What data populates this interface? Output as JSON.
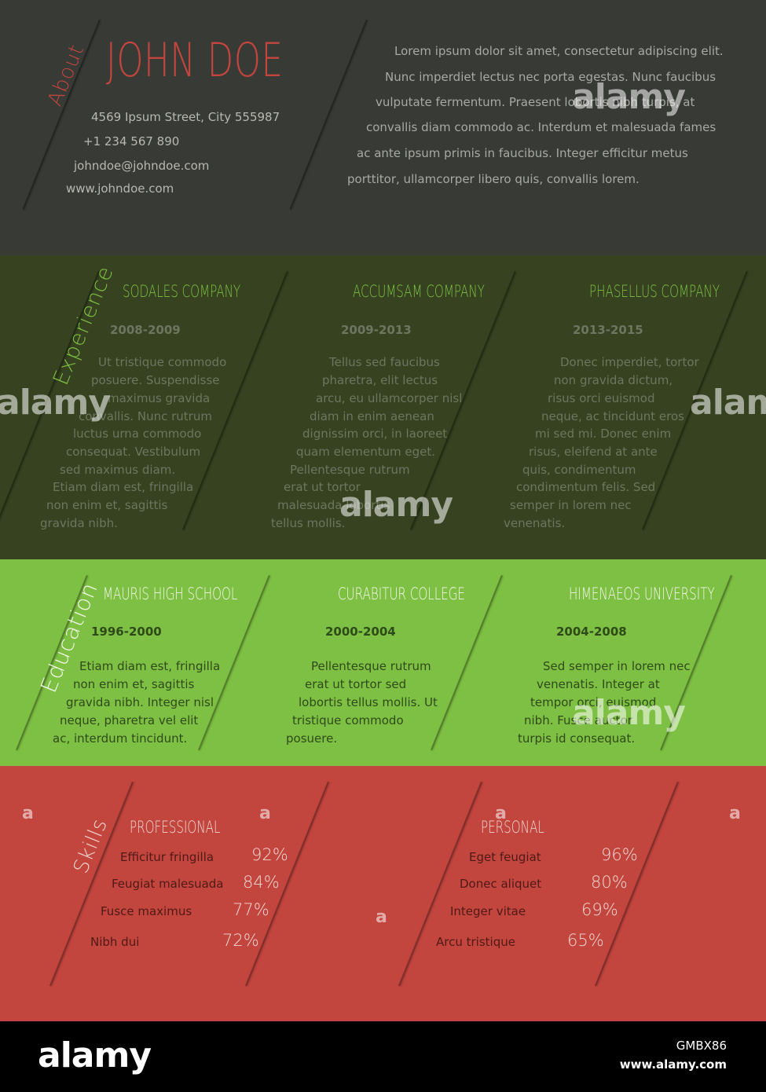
{
  "about": {
    "label": "About",
    "name": "JOHN DOE",
    "contact": [
      "4569 Ipsum Street, City 555987",
      "+1 234 567 890",
      "johndoe@johndoe.com",
      "www.johndoe.com"
    ],
    "text": [
      "Lorem ipsum dolor sit amet, consectetur adipiscing elit.",
      "Nunc imperdiet lectus nec porta egestas. Nunc faucibus",
      "vulputate fermentum. Praesent lobortis nibh turpis, at",
      "convallis diam commodo ac. Interdum et malesuada fames",
      "ac ante ipsum primis in faucibus. Integer efficitur metus",
      "porttitor, ullamcorper libero quis, convallis lorem."
    ]
  },
  "experience": {
    "label": "Experience",
    "jobs": [
      {
        "title": "SODALES COMPANY",
        "years": "2008-2009",
        "lines": [
          "Ut tristique commodo",
          "posuere. Suspendisse",
          "maximus gravida",
          "convallis. Nunc rutrum",
          "luctus urna commodo",
          "consequat. Vestibulum",
          "sed maximus diam.",
          "Etiam diam est, fringilla",
          "non enim et, sagittis",
          "gravida nibh."
        ]
      },
      {
        "title": "ACCUMSAM COMPANY",
        "years": "2009-2013",
        "lines": [
          "Tellus sed faucibus",
          "pharetra, elit lectus",
          "arcu, eu ullamcorper nisl",
          "diam in enim  aenean",
          "dignissim orci, in laoreet",
          "quam elementum eget.",
          "Pellentesque rutrum",
          "erat ut tortor",
          "malesuada lobortis",
          "tellus mollis."
        ]
      },
      {
        "title": "PHASELLUS COMPANY",
        "years": "2013-2015",
        "lines": [
          "Donec imperdiet, tortor",
          "non gravida dictum,",
          "risus orci euismod",
          "neque, ac tincidunt eros",
          "mi sed mi. Donec enim",
          "risus, eleifend at ante",
          "quis, condimentum",
          "condimentum felis. Sed",
          "semper in lorem nec",
          "venenatis."
        ]
      }
    ]
  },
  "education": {
    "label": "Education",
    "schools": [
      {
        "title": "MAURIS HIGH SCHOOL",
        "years": "1996-2000",
        "lines": [
          "Etiam diam est, fringilla",
          "non enim et, sagittis",
          "gravida nibh. Integer nisl",
          "neque, pharetra vel elit",
          "ac, interdum tincidunt."
        ]
      },
      {
        "title": "CURABITUR COLLEGE",
        "years": "2000-2004",
        "lines": [
          "Pellentesque rutrum",
          "erat ut tortor  sed",
          "lobortis tellus mollis. Ut",
          "tristique commodo",
          "posuere."
        ]
      },
      {
        "title": "HIMENAEOS UNIVERSITY",
        "years": "2004-2008",
        "lines": [
          "Sed semper in lorem nec",
          "venenatis. Integer at",
          "tempor orci, euismod",
          "nibh. Fusce auctor",
          "turpis id consequat."
        ]
      }
    ]
  },
  "skills": {
    "label": "Skills",
    "professional": {
      "title": "PROFESSIONAL",
      "items": [
        {
          "label": "Efficitur fringilla",
          "value": "92%"
        },
        {
          "label": "Feugiat malesuada",
          "value": "84%"
        },
        {
          "label": "Fusce maximus",
          "value": "77%"
        },
        {
          "label": "Nibh dui",
          "value": "72%"
        }
      ]
    },
    "personal": {
      "title": "PERSONAL",
      "items": [
        {
          "label": "Eget feugiat",
          "value": "96%"
        },
        {
          "label": "Donec aliquet",
          "value": "80%"
        },
        {
          "label": "Integer vitae",
          "value": "69%"
        },
        {
          "label": "Arcu tristique",
          "value": "65%"
        }
      ]
    }
  },
  "watermark": {
    "word": "alamy",
    "letter": "a",
    "image_code": "GMBX86",
    "url": "www.alamy.com"
  }
}
